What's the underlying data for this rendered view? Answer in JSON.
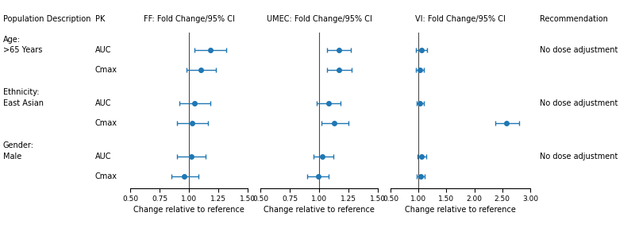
{
  "chart_data": [
    {
      "type": "forest",
      "title": "FF: Fold Change/95% CI",
      "x_label": "Change relative to reference",
      "xlim": [
        0.5,
        1.5
      ],
      "xticks": [
        {
          "value": 0.5,
          "label": "0.50"
        },
        {
          "value": 0.75,
          "label": "0.75"
        },
        {
          "value": 1.0,
          "label": "1.00"
        },
        {
          "value": 1.25,
          "label": "1.25"
        },
        {
          "value": 1.5,
          "label": "1.50"
        }
      ],
      "reference_line": 1.0,
      "values": [
        1.18,
        1.1,
        1.05,
        1.03,
        1.02,
        0.96
      ],
      "ci_low": [
        1.05,
        0.98,
        0.92,
        0.9,
        0.9,
        0.85
      ],
      "ci_high": [
        1.32,
        1.23,
        1.18,
        1.16,
        1.14,
        1.08
      ]
    },
    {
      "type": "forest",
      "title": "UMEC: Fold Change/95% CI",
      "x_label": "Change relative to reference",
      "xlim": [
        0.5,
        1.5
      ],
      "xticks": [
        {
          "value": 0.5,
          "label": "0.50"
        },
        {
          "value": 0.75,
          "label": "0.75"
        },
        {
          "value": 1.0,
          "label": "1.00"
        },
        {
          "value": 1.25,
          "label": "1.25"
        },
        {
          "value": 1.5,
          "label": "1.50"
        }
      ],
      "reference_line": 1.0,
      "values": [
        1.17,
        1.17,
        1.08,
        1.13,
        1.03,
        0.99
      ],
      "ci_low": [
        1.07,
        1.07,
        0.98,
        1.02,
        0.95,
        0.9
      ],
      "ci_high": [
        1.27,
        1.28,
        1.18,
        1.25,
        1.12,
        1.08
      ]
    },
    {
      "type": "forest",
      "title": "VI: Fold Change/95% CI",
      "x_label": "Change relative to reference",
      "xlim": [
        0.5,
        3.0
      ],
      "xticks": [
        {
          "value": 0.5,
          "label": "0.50"
        },
        {
          "value": 1.0,
          "label": "1.00"
        },
        {
          "value": 1.5,
          "label": "1.50"
        },
        {
          "value": 2.0,
          "label": "2.00"
        },
        {
          "value": 2.5,
          "label": "2.50"
        },
        {
          "value": 3.0,
          "label": "3.00"
        }
      ],
      "reference_line": 1.0,
      "values": [
        1.05,
        1.02,
        1.03,
        2.58,
        1.06,
        1.04
      ],
      "ci_low": [
        0.95,
        0.95,
        0.97,
        2.38,
        0.99,
        0.97
      ],
      "ci_high": [
        1.15,
        1.09,
        1.09,
        2.8,
        1.14,
        1.11
      ]
    }
  ],
  "table": {
    "columns": {
      "population": "Population Description",
      "pk": "PK",
      "recommendation": "Recommendation"
    },
    "groups": [
      {
        "label": "Age:",
        "sub_label": ">65 Years",
        "recommendation": "No dose adjustment",
        "rows": [
          "AUC",
          "Cmax"
        ]
      },
      {
        "label": "Ethnicity:",
        "sub_label": "East Asian",
        "recommendation": "No dose adjustment",
        "rows": [
          "AUC",
          "Cmax"
        ]
      },
      {
        "label": "Gender:",
        "sub_label": "Male",
        "recommendation": "No dose adjustment",
        "rows": [
          "AUC",
          "Cmax"
        ]
      }
    ]
  }
}
